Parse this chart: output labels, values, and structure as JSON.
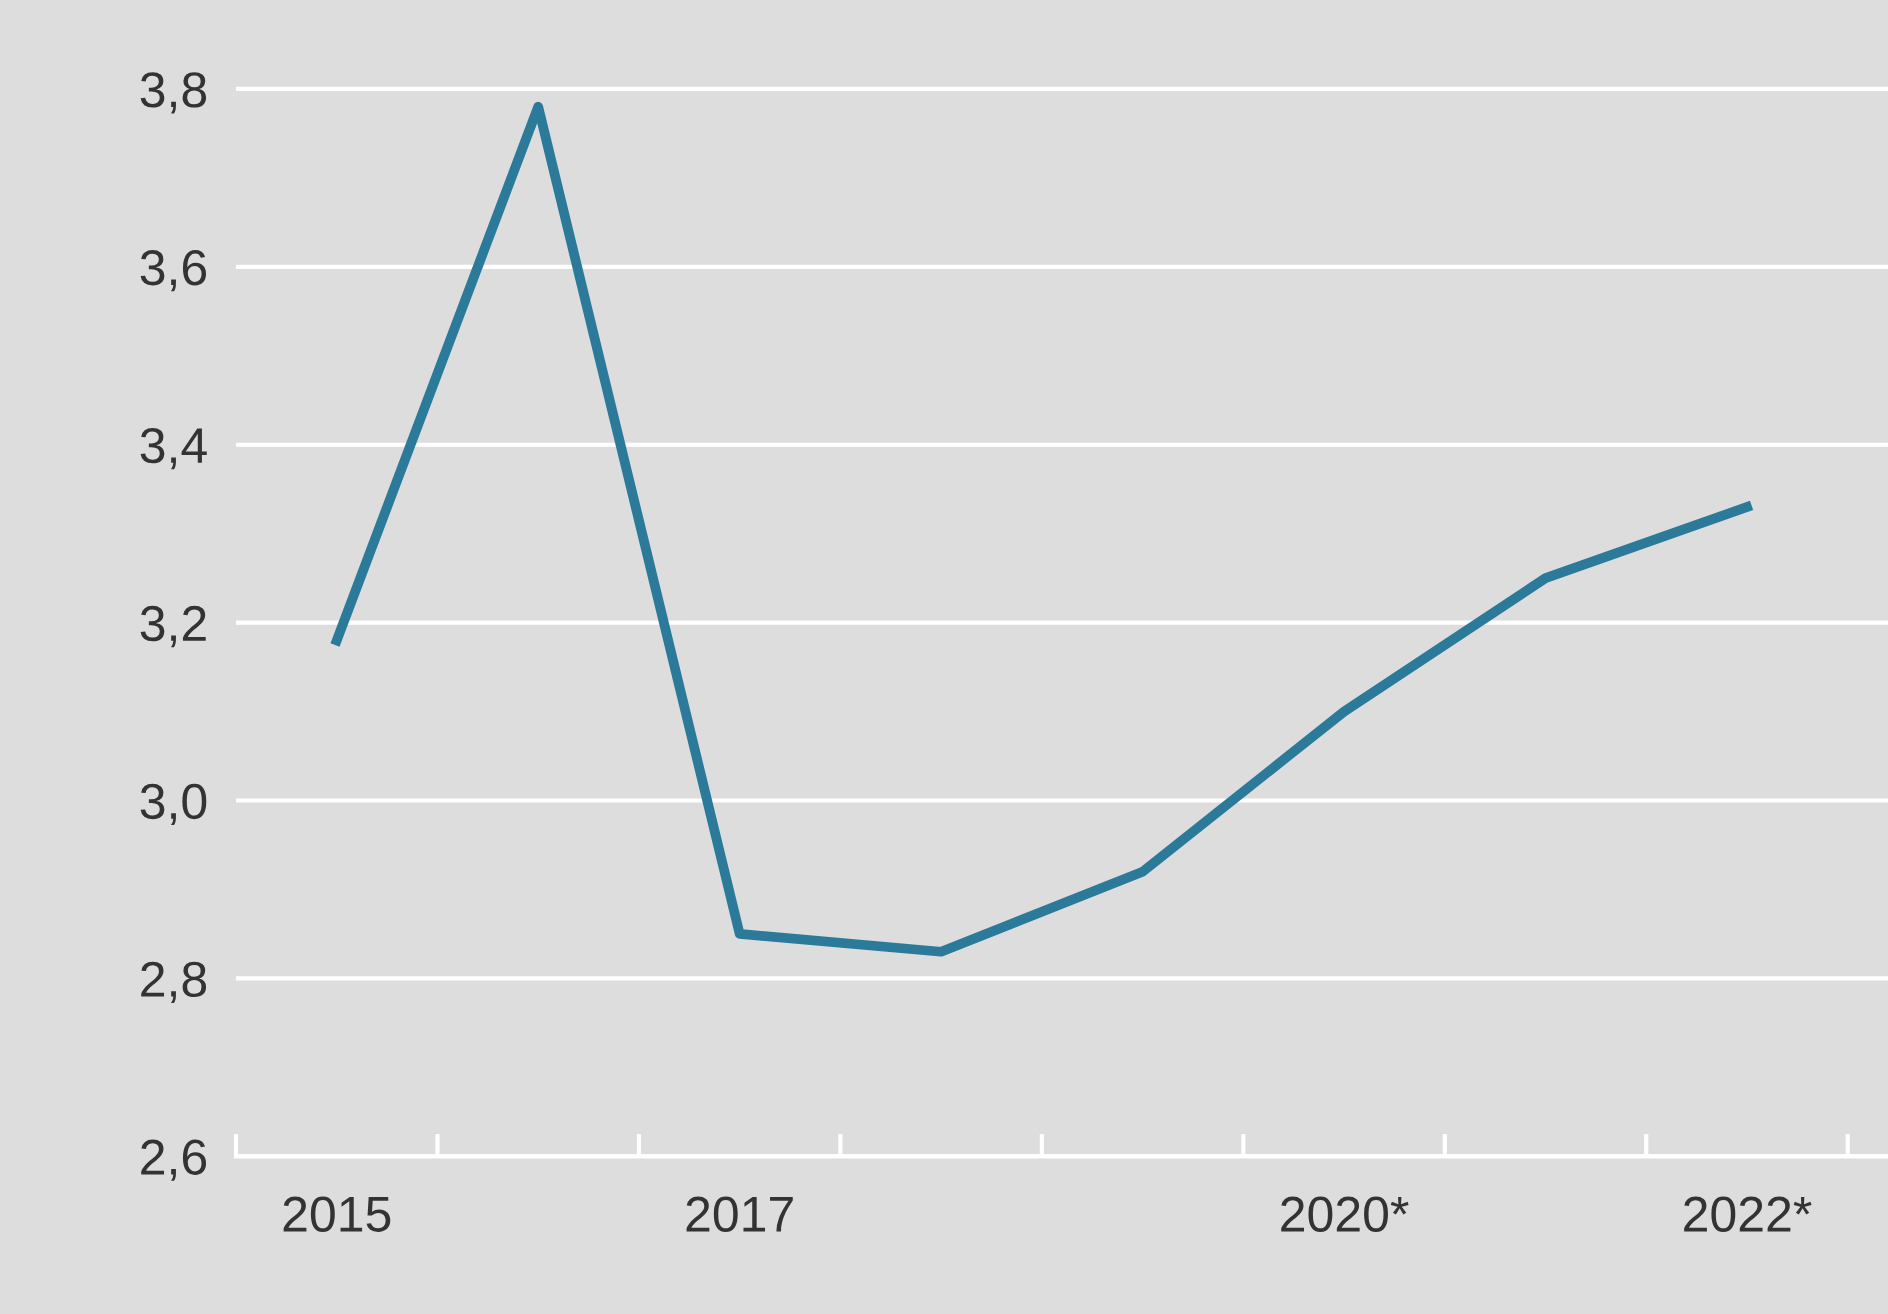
{
  "chart_data": {
    "type": "line",
    "categories": [
      "2015",
      null,
      "2017",
      null,
      null,
      "2020*",
      null,
      "2022*"
    ],
    "series": [
      {
        "color": "#2b7a99",
        "values": [
          3.18,
          3.78,
          2.85,
          2.83,
          2.92,
          3.1,
          3.25,
          3.33
        ]
      }
    ],
    "ylim": [
      2.6,
      3.9
    ],
    "yticks": [
      {
        "value": 2.6,
        "label": "2,6"
      },
      {
        "value": 2.8,
        "label": "2,8"
      },
      {
        "value": 3.0,
        "label": "3,0"
      },
      {
        "value": 3.2,
        "label": "3,2"
      },
      {
        "value": 3.4,
        "label": "3,4"
      },
      {
        "value": 3.6,
        "label": "3,6"
      },
      {
        "value": 3.8,
        "label": "3,8"
      }
    ],
    "grid": "y",
    "marker": "none",
    "line_style": "solid"
  }
}
